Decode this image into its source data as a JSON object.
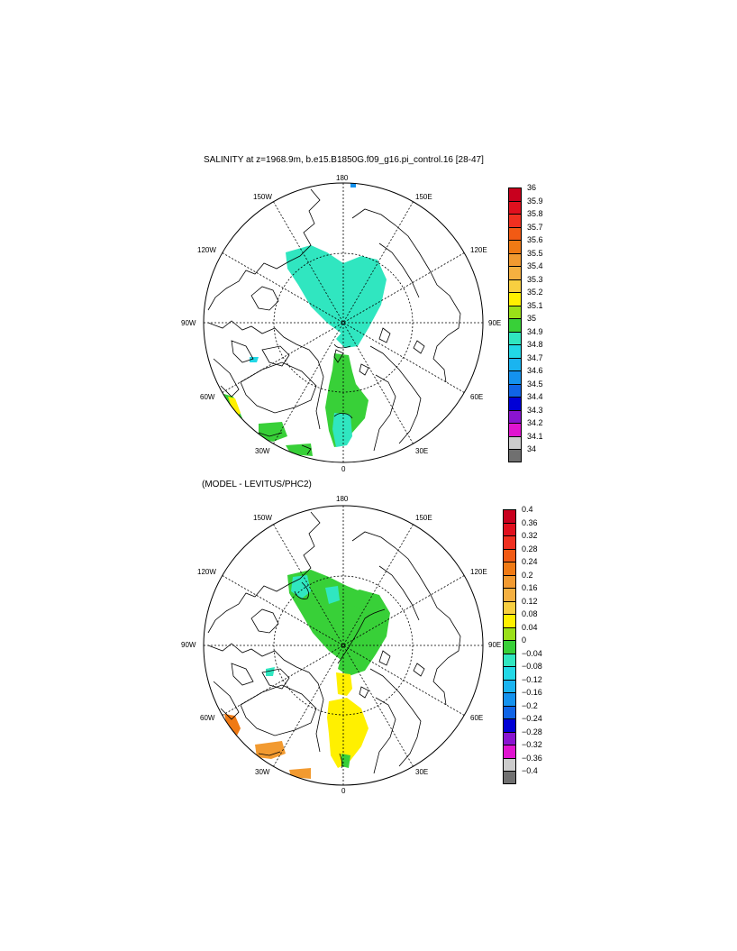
{
  "panel1": {
    "title": "SALINITY at z=1968.9m, b.e15.B1850G.f09_g16.pi_control.16 [28-47]",
    "lon_labels": {
      "top": "180",
      "tl": "150W",
      "tr": "150E",
      "ul": "120W",
      "ur": "120E",
      "l": "90W",
      "r": "90E",
      "ll": "60W",
      "lr": "60E",
      "bl": "30W",
      "br": "30E",
      "bottom": "0"
    },
    "colorbar": {
      "labels": [
        "36",
        "35.9",
        "35.8",
        "35.7",
        "35.6",
        "35.5",
        "35.4",
        "35.3",
        "35.2",
        "35.1",
        "35",
        "34.9",
        "34.8",
        "34.7",
        "34.6",
        "34.5",
        "34.4",
        "34.3",
        "34.2",
        "34.1",
        "34"
      ],
      "colors": [
        "#c8001e",
        "#e0101e",
        "#f03020",
        "#f25a14",
        "#f07a14",
        "#f29a30",
        "#f5b040",
        "#f8cf40",
        "#fff000",
        "#9ae018",
        "#38d038",
        "#30e6c0",
        "#22d8e6",
        "#1ab4f0",
        "#1492ee",
        "#1064e6",
        "#0000d6",
        "#8a14d0",
        "#e014d0",
        "#cccccc",
        "#707070"
      ]
    }
  },
  "panel2": {
    "title": "(MODEL - LEVITUS/PHC2)",
    "lon_labels": {
      "top": "180",
      "tl": "150W",
      "tr": "150E",
      "ul": "120W",
      "ur": "120E",
      "l": "90W",
      "r": "90E",
      "ll": "60W",
      "lr": "60E",
      "bl": "30W",
      "br": "30E",
      "bottom": "0"
    },
    "colorbar": {
      "labels": [
        "0.4",
        "0.36",
        "0.32",
        "0.28",
        "0.24",
        "0.2",
        "0.16",
        "0.12",
        "0.08",
        "0.04",
        "0",
        "−0.04",
        "−0.08",
        "−0.12",
        "−0.16",
        "−0.2",
        "−0.24",
        "−0.28",
        "−0.32",
        "−0.36",
        "−0.4"
      ],
      "colors": [
        "#c8001e",
        "#e0101e",
        "#f03020",
        "#f25a14",
        "#f07a14",
        "#f29a30",
        "#f5b040",
        "#f8cf40",
        "#fff000",
        "#9ae018",
        "#38d038",
        "#30e6c0",
        "#22d8e6",
        "#1ab4f0",
        "#1492ee",
        "#1064e6",
        "#0000d6",
        "#8a14d0",
        "#e014d0",
        "#cccccc",
        "#707070"
      ]
    }
  }
}
